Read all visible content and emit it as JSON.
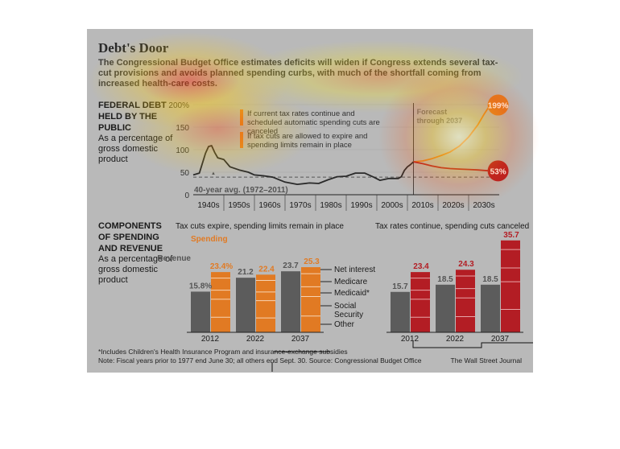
{
  "title": "Debt's Door",
  "subtitle": "The Congressional Budget Office estimates deficits will widen if Congress extends several tax-cut provisions and avoids planned spending curbs, with much of the shortfall coming from increased health-care costs.",
  "top_block": {
    "heading": "FEDERAL DEBT HELD BY THE PUBLIC",
    "subheading": "As a percentage of gross domestic product"
  },
  "bottom_block": {
    "heading": "COMPONENTS OF SPENDING AND REVENUE",
    "subheading": "As a percentage of gross domestic product"
  },
  "footnote": "*Includes Children's Health Insurance Program and insurance-exchange subsidies",
  "source": "Note: Fiscal years prior to 1977 end June 30; all others end Sept. 30.  Source: Congressional Budget Office",
  "brand": "The Wall Street Journal",
  "colors": {
    "card": "#b9b9b9",
    "orange": "#e17a23",
    "red": "#b31d24",
    "gray": "#5c5c5c",
    "line": "#2a2a2a"
  },
  "chart_data": [
    {
      "type": "line",
      "ylim": [
        0,
        200
      ],
      "y_ticks": [
        "0",
        "50",
        "100",
        "150",
        "200%"
      ],
      "x_ticks": [
        "1940s",
        "1950s",
        "1960s",
        "1970s",
        "1980s",
        "1990s",
        "2000s",
        "2010s",
        "2020s",
        "2030s"
      ],
      "legend": [
        "If current tax rates continue and scheduled automatic spending cuts are canceled",
        "If tax cuts are allowed to expire and spending limits remain in place"
      ],
      "divider_label": "Forecast",
      "divider_label2": "through 2037",
      "avg_line": {
        "value": 39,
        "label": "40-year avg. (1972–2011)"
      },
      "end_labels": [
        "199%",
        "53%"
      ],
      "series": [
        {
          "x": [
            1940,
            1942,
            1944,
            1945,
            1946,
            1947,
            1948,
            1950,
            1952,
            1955,
            1958,
            1960,
            1963,
            1966,
            1970,
            1974,
            1978,
            1981,
            1984,
            1987,
            1990,
            1993,
            1996,
            1999,
            2001,
            2004,
            2007,
            2008,
            2009,
            2010,
            2011,
            2012
          ],
          "values": [
            44,
            48,
            92,
            107,
            109,
            94,
            82,
            78,
            62,
            55,
            50,
            44,
            42,
            39,
            28,
            23,
            26,
            25,
            33,
            40,
            41,
            48,
            48,
            39,
            32,
            36,
            36,
            40,
            54,
            62,
            67,
            73
          ]
        },
        {
          "x": [
            2012,
            2015,
            2018,
            2021,
            2024,
            2027,
            2030,
            2033,
            2035,
            2037
          ],
          "values": [
            73,
            75,
            80,
            87,
            95,
            108,
            128,
            155,
            178,
            199
          ]
        },
        {
          "x": [
            2012,
            2015,
            2018,
            2021,
            2024,
            2027,
            2030,
            2033,
            2035,
            2037
          ],
          "values": [
            73,
            69,
            64,
            60,
            58,
            57,
            56,
            55,
            54,
            53
          ]
        }
      ]
    },
    {
      "type": "bar",
      "title": "Tax cuts expire, spending limits remain in place",
      "categories": [
        "2012",
        "2022",
        "2037"
      ],
      "ylim": [
        0,
        40
      ],
      "series": [
        {
          "name": "Revenue",
          "values": [
            15.8,
            21.2,
            23.7
          ]
        },
        {
          "name": "Spending",
          "values": [
            23.4,
            22.4,
            25.3
          ]
        }
      ],
      "value_labels": {
        "revenue": [
          "15.8%",
          "21.2",
          "23.7"
        ],
        "spending": [
          "23.4%",
          "22.4",
          "25.3"
        ]
      },
      "components": [
        "Net interest",
        "Medicare",
        "Medicaid*",
        "Social Security",
        "Other"
      ],
      "annotations": {
        "revenue": "Revenue",
        "spending": "Spending"
      }
    },
    {
      "type": "bar",
      "title": "Tax rates continue, spending cuts canceled",
      "categories": [
        "2012",
        "2022",
        "2037"
      ],
      "ylim": [
        0,
        40
      ],
      "series": [
        {
          "values": [
            15.7,
            18.5,
            18.5
          ]
        },
        {
          "values": [
            23.4,
            24.3,
            35.7
          ]
        }
      ]
    }
  ]
}
